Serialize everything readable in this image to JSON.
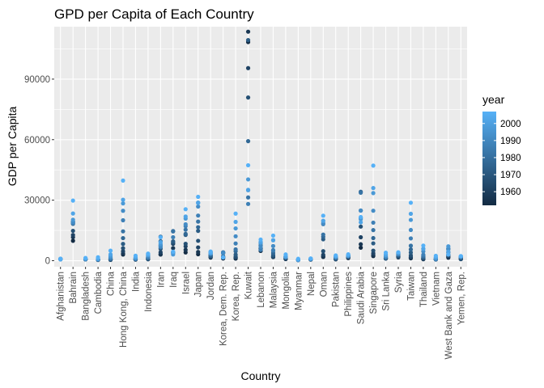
{
  "chart_data": {
    "type": "scatter",
    "title": "GPD per Capita of Each Country",
    "xlabel": "Country",
    "ylabel": "GDP per Capita",
    "ylim": [
      -3000,
      116000
    ],
    "yticks": [
      0,
      30000,
      60000,
      90000
    ],
    "ytick_labels": [
      "0",
      "30000",
      "60000",
      "90000"
    ],
    "grid": true,
    "legend": {
      "title": "year",
      "position": "right",
      "range": [
        1952,
        2007
      ],
      "ticks": [
        1960,
        1970,
        1980,
        1990,
        2000
      ],
      "color_low": "#132B43",
      "color_high": "#56B1F7"
    },
    "years": [
      1952,
      1957,
      1962,
      1967,
      1972,
      1977,
      1982,
      1987,
      1992,
      1997,
      2002,
      2007
    ],
    "categories": [
      "Afghanistan",
      "Bahrain",
      "Bangladesh",
      "Cambodia",
      "China",
      "Hong Kong, China",
      "India",
      "Indonesia",
      "Iran",
      "Iraq",
      "Israel",
      "Japan",
      "Jordan",
      "Korea, Dem. Rep.",
      "Korea, Rep.",
      "Kuwait",
      "Lebanon",
      "Malaysia",
      "Mongolia",
      "Myanmar",
      "Nepal",
      "Oman",
      "Pakistan",
      "Philippines",
      "Saudi Arabia",
      "Singapore",
      "Sri Lanka",
      "Syria",
      "Taiwan",
      "Thailand",
      "Vietnam",
      "West Bank and Gaza",
      "Yemen, Rep."
    ],
    "series": [
      {
        "country": "Afghanistan",
        "values": [
          779,
          821,
          853,
          836,
          740,
          786,
          978,
          852,
          649,
          635,
          727,
          975
        ]
      },
      {
        "country": "Bahrain",
        "values": [
          9867,
          11636,
          12753,
          14805,
          18269,
          19340,
          19211,
          18524,
          19036,
          20292,
          23404,
          29796
        ]
      },
      {
        "country": "Bangladesh",
        "values": [
          684,
          662,
          686,
          721,
          630,
          660,
          677,
          752,
          838,
          973,
          1136,
          1391
        ]
      },
      {
        "country": "Cambodia",
        "values": [
          368,
          434,
          497,
          523,
          422,
          525,
          624,
          684,
          682,
          734,
          896,
          1714
        ]
      },
      {
        "country": "China",
        "values": [
          400,
          576,
          488,
          613,
          677,
          741,
          962,
          1379,
          1656,
          2289,
          3119,
          4959
        ]
      },
      {
        "country": "Hong Kong, China",
        "values": [
          3054,
          3629,
          4693,
          6198,
          8316,
          11186,
          14560,
          20038,
          24757,
          28378,
          30209,
          39725
        ]
      },
      {
        "country": "India",
        "values": [
          547,
          590,
          658,
          701,
          724,
          813,
          856,
          977,
          1164,
          1459,
          1747,
          2452
        ]
      },
      {
        "country": "Indonesia",
        "values": [
          750,
          859,
          849,
          763,
          1111,
          1383,
          1517,
          1748,
          2383,
          3119,
          2874,
          3541
        ]
      },
      {
        "country": "Iran",
        "values": [
          3035,
          3290,
          4187,
          5907,
          9614,
          11889,
          7608,
          6643,
          7235,
          8264,
          9241,
          11606
        ]
      },
      {
        "country": "Iraq",
        "values": [
          4130,
          6229,
          8342,
          8931,
          9576,
          14688,
          14517,
          11644,
          3746,
          3076,
          4391,
          4471
        ]
      },
      {
        "country": "Israel",
        "values": [
          4087,
          5386,
          7106,
          8394,
          12786,
          13307,
          15367,
          17123,
          18051,
          20897,
          21906,
          25523
        ]
      },
      {
        "country": "Japan",
        "values": [
          3217,
          4318,
          6577,
          9848,
          14779,
          16610,
          19384,
          22376,
          26825,
          28817,
          28605,
          31656
        ]
      },
      {
        "country": "Jordan",
        "values": [
          1547,
          1886,
          2348,
          2741,
          2110,
          2852,
          4162,
          4449,
          3431,
          3645,
          3845,
          4519
        ]
      },
      {
        "country": "Korea, Dem. Rep.",
        "values": [
          1088,
          1571,
          1622,
          2144,
          3702,
          4106,
          4107,
          4106,
          3726,
          1691,
          1647,
          1593
        ]
      },
      {
        "country": "Korea, Rep.",
        "values": [
          1031,
          1488,
          1536,
          2029,
          3031,
          4657,
          5623,
          8533,
          12104,
          15994,
          19234,
          23348
        ]
      },
      {
        "country": "Kuwait",
        "values": [
          108382,
          113523,
          95458,
          80895,
          109348,
          59265,
          31354,
          28118,
          34933,
          40301,
          35110,
          47307
        ]
      },
      {
        "country": "Lebanon",
        "values": [
          4835,
          6090,
          5716,
          6006,
          7486,
          8660,
          7641,
          5377,
          6891,
          8755,
          9314,
          10461
        ]
      },
      {
        "country": "Malaysia",
        "values": [
          1831,
          1810,
          2037,
          2278,
          2849,
          3828,
          4920,
          5249,
          7278,
          10132,
          10207,
          12452
        ]
      },
      {
        "country": "Mongolia",
        "values": [
          786,
          912,
          1056,
          1226,
          1421,
          1648,
          1843,
          2156,
          1782,
          1902,
          2140,
          3096
        ]
      },
      {
        "country": "Myanmar",
        "values": [
          331,
          350,
          388,
          349,
          357,
          371,
          424,
          385,
          347,
          415,
          611,
          944
        ]
      },
      {
        "country": "Nepal",
        "values": [
          546,
          598,
          652,
          676,
          674,
          695,
          718,
          775,
          898,
          1011,
          1057,
          1091
        ]
      },
      {
        "country": "Oman",
        "values": [
          1828,
          2243,
          2925,
          4721,
          10618,
          11848,
          12955,
          18115,
          18617,
          19702,
          19775,
          22316
        ]
      },
      {
        "country": "Pakistan",
        "values": [
          684,
          747,
          803,
          942,
          1050,
          1175,
          1443,
          1705,
          1972,
          2049,
          2093,
          2606
        ]
      },
      {
        "country": "Philippines",
        "values": [
          1273,
          1548,
          1650,
          1814,
          1989,
          2373,
          2603,
          2189,
          2279,
          2537,
          2651,
          3190
        ]
      },
      {
        "country": "Saudi Arabia",
        "values": [
          6460,
          8157,
          11626,
          16904,
          24837,
          34168,
          33693,
          21199,
          24841,
          20586,
          19014,
          21655
        ]
      },
      {
        "country": "Singapore",
        "values": [
          2315,
          2844,
          3675,
          4977,
          8597,
          11210,
          15169,
          18862,
          24769,
          33519,
          36023,
          47143
        ]
      },
      {
        "country": "Sri Lanka",
        "values": [
          1083,
          1072,
          1074,
          1136,
          1213,
          1348,
          1648,
          1877,
          2154,
          2665,
          3015,
          3970
        ]
      },
      {
        "country": "Syria",
        "values": [
          1643,
          2117,
          2194,
          1882,
          2571,
          3195,
          3761,
          3116,
          3341,
          4014,
          4091,
          4185
        ]
      },
      {
        "country": "Taiwan",
        "values": [
          1207,
          1508,
          1823,
          2644,
          4063,
          5597,
          7426,
          11055,
          15216,
          20206,
          23235,
          28718
        ]
      },
      {
        "country": "Thailand",
        "values": [
          758,
          794,
          1002,
          1295,
          1525,
          1961,
          2394,
          2983,
          4616,
          5853,
          5913,
          7458
        ]
      },
      {
        "country": "Vietnam",
        "values": [
          605,
          676,
          772,
          637,
          700,
          714,
          707,
          821,
          989,
          1386,
          1764,
          2442
        ]
      },
      {
        "country": "West Bank and Gaza",
        "values": [
          1516,
          1827,
          2199,
          2650,
          3134,
          4168,
          5633,
          6012,
          6018,
          7111,
          4516,
          3026
        ]
      },
      {
        "country": "Yemen, Rep.",
        "values": [
          782,
          804,
          826,
          862,
          1265,
          1830,
          1978,
          1972,
          1879,
          2117,
          2235,
          2281
        ]
      }
    ]
  }
}
